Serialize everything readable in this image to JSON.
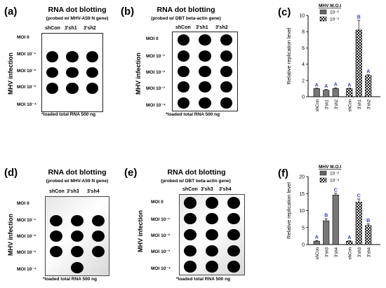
{
  "panels": [
    {
      "label": "(a)",
      "title": "RNA dot blotting",
      "subtitle": "(probed w/ MHV-A59 N gene)",
      "columns": [
        "shCon",
        "3'sh1",
        "3'sh2"
      ],
      "rows": [
        "MOI 0",
        "MOI 10⁻¹",
        "MOI 10⁻²",
        "MOI 10⁻³",
        "MOI 10⁻⁴"
      ],
      "side_label": "MHV infection",
      "footnote": "*loaded total RNA 500 ng",
      "dots": [
        [
          0,
          0,
          0
        ],
        [
          1,
          1,
          1
        ],
        [
          1,
          1,
          1
        ],
        [
          1,
          1,
          1
        ],
        [
          0,
          0,
          0
        ]
      ]
    },
    {
      "label": "(b)",
      "title": "RNA dot blotting",
      "subtitle": "(probed w/ DBT beta-actin gene)",
      "columns": [
        "shCon",
        "3'sh1",
        "3'sh2"
      ],
      "rows": [
        "MOI 0",
        "MOI 10⁻¹",
        "MOI 10⁻²",
        "MOI 10⁻³",
        "MOI 10⁻⁴"
      ],
      "side_label": "MHV infection",
      "footnote": "*loaded total RNA 500 ng",
      "dots": [
        [
          1,
          1,
          1
        ],
        [
          1,
          1,
          1
        ],
        [
          1,
          1,
          1
        ],
        [
          1,
          1,
          1
        ],
        [
          1,
          1,
          1
        ]
      ]
    },
    {
      "label": "(d)",
      "title": "RNA dot blotting",
      "subtitle": "(probed w/ MHV-A59 N gene)",
      "columns": [
        "shCon",
        "3'sh3",
        "3'sh4"
      ],
      "rows": [
        "MOI 0",
        "MOI 10⁻¹",
        "MOI 10⁻²",
        "MOI 10⁻³",
        "MOI 10⁻⁴"
      ],
      "side_label": "MHV infection",
      "footnote": "*loaded total RNA 500 ng",
      "dots": [
        [
          0,
          0,
          0
        ],
        [
          1,
          1,
          1
        ],
        [
          1,
          1,
          1
        ],
        [
          1,
          1,
          1
        ],
        [
          0,
          1,
          0
        ]
      ]
    },
    {
      "label": "(e)",
      "title": "RNA dot blotting",
      "subtitle": "(probed w/ DBT beta-actin gene)",
      "columns": [
        "shCon",
        "3'sh3",
        "3'sh4"
      ],
      "rows": [
        "MOI 0",
        "MOI 10⁻¹",
        "MOI 10⁻²",
        "MOI 10⁻³",
        "MOI 10⁻⁴"
      ],
      "side_label": "MHV infection",
      "footnote": "*loaded total RNA 500 ng",
      "dots": [
        [
          1,
          1,
          1
        ],
        [
          1,
          1,
          1
        ],
        [
          1,
          1,
          1
        ],
        [
          1,
          1,
          1
        ],
        [
          1,
          1,
          1
        ]
      ]
    }
  ],
  "chart_data": [
    {
      "label": "(c)",
      "type": "bar",
      "ylabel": "Relative replication level",
      "ylim": [
        0,
        10
      ],
      "yticks": [
        0,
        2,
        4,
        6,
        8,
        10
      ],
      "legend_title": "MHV M.O.I",
      "legend": [
        "10⁻²",
        "10⁻³"
      ],
      "categories": [
        "shCon",
        "3'sh1",
        "3'sh2",
        "shCon",
        "3'sh1",
        "3'sh2"
      ],
      "groups": [
        "10⁻²",
        "10⁻²",
        "10⁻²",
        "10⁻³",
        "10⁻³",
        "10⁻³"
      ],
      "values": [
        1.0,
        0.8,
        1.0,
        1.0,
        8.2,
        2.6
      ],
      "errors": [
        0.05,
        0.1,
        0.1,
        0.05,
        1.2,
        0.1
      ],
      "significance": [
        "A",
        "A",
        "A",
        "A",
        "B",
        "A"
      ],
      "colors": {
        "significance": "#2b3fc4"
      }
    },
    {
      "label": "(f)",
      "type": "bar",
      "ylabel": "Relative replication level",
      "ylim": [
        0,
        20
      ],
      "yticks": [
        0,
        5,
        10,
        15,
        20
      ],
      "legend_title": "MHV M.O.I",
      "legend": [
        "10⁻²",
        "10⁻³"
      ],
      "categories": [
        "shCon",
        "3'sh3",
        "3'sh4",
        "shCon",
        "3'sh3",
        "3'sh4"
      ],
      "groups": [
        "10⁻²",
        "10⁻²",
        "10⁻²",
        "10⁻³",
        "10⁻³",
        "10⁻³"
      ],
      "values": [
        1.0,
        7.0,
        14.6,
        1.0,
        12.5,
        5.6
      ],
      "errors": [
        0.2,
        0.6,
        0.5,
        0.1,
        0.9,
        0.5
      ],
      "significance": [
        "A",
        "B",
        "C",
        "A",
        "C",
        "B"
      ],
      "colors": {
        "significance": "#2b3fc4"
      }
    }
  ]
}
